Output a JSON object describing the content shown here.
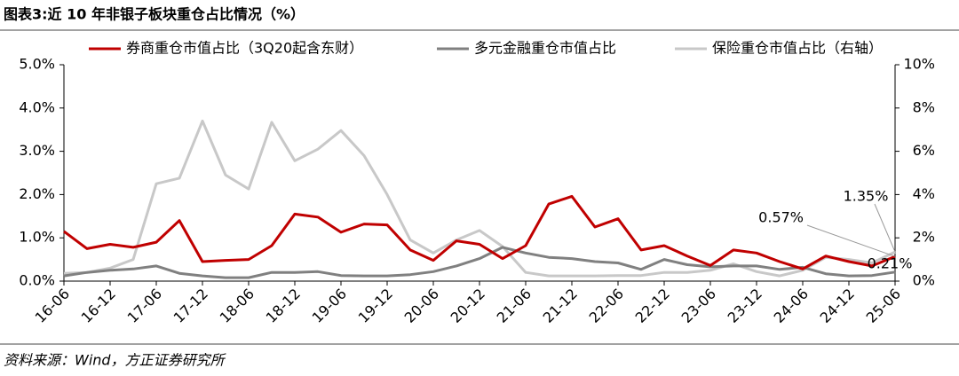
{
  "chart_data": {
    "type": "line",
    "title": "图表3:近 10 年非银子板块重仓占比情况（%）",
    "source": "资料来源：Wind，方正证券研究所",
    "categories": [
      "16-06",
      null,
      "16-12",
      null,
      "17-06",
      null,
      "17-12",
      null,
      "18-06",
      null,
      "18-12",
      null,
      "19-06",
      null,
      "19-12",
      null,
      "20-06",
      null,
      "20-12",
      null,
      "21-06",
      null,
      "21-12",
      null,
      "22-06",
      null,
      "22-12",
      null,
      "23-06",
      null,
      "23-12",
      null,
      "24-06",
      null,
      "24-12",
      null,
      "25-06"
    ],
    "series": [
      {
        "name": "券商重仓市值占比（3Q20起含东财）",
        "color": "#c00000",
        "values": [
          1.15,
          0.75,
          0.85,
          0.78,
          0.9,
          1.4,
          0.45,
          0.48,
          0.5,
          0.82,
          1.55,
          1.48,
          1.13,
          1.32,
          1.3,
          0.72,
          0.48,
          0.93,
          0.85,
          0.52,
          0.82,
          1.78,
          1.96,
          1.25,
          1.44,
          0.72,
          0.82,
          0.58,
          0.36,
          0.72,
          0.65,
          0.45,
          0.28,
          0.58,
          0.45,
          0.35,
          0.57
        ]
      },
      {
        "name": "多元金融重仓市值占比",
        "color": "#808080",
        "values": [
          0.12,
          0.2,
          0.25,
          0.28,
          0.35,
          0.18,
          0.12,
          0.08,
          0.08,
          0.2,
          0.2,
          0.22,
          0.13,
          0.12,
          0.12,
          0.15,
          0.22,
          0.35,
          0.52,
          0.78,
          0.65,
          0.55,
          0.52,
          0.45,
          0.42,
          0.27,
          0.5,
          0.38,
          0.33,
          0.35,
          0.35,
          0.27,
          0.32,
          0.17,
          0.12,
          0.13,
          0.21
        ]
      },
      {
        "name": "保险重仓市值占比（右轴）",
        "color": "#c8c8c8",
        "axis": "y2",
        "values": [
          0.36,
          0.4,
          0.6,
          1.0,
          4.5,
          4.76,
          7.4,
          4.9,
          4.26,
          7.34,
          5.56,
          6.1,
          6.96,
          5.8,
          4.0,
          1.9,
          1.3,
          1.9,
          2.34,
          1.6,
          0.4,
          0.24,
          0.24,
          0.24,
          0.26,
          0.26,
          0.4,
          0.4,
          0.5,
          0.8,
          0.44,
          0.24,
          0.5,
          1.1,
          1.0,
          0.84,
          1.35
        ]
      }
    ],
    "annotations": [
      "0.57%",
      "1.35%",
      "0.21%"
    ],
    "ylim": [
      0,
      5
    ],
    "yticks": [
      {
        "value": 0,
        "label": "0.0%"
      },
      {
        "value": 1,
        "label": "1.0%"
      },
      {
        "value": 2,
        "label": "2.0%"
      },
      {
        "value": 3,
        "label": "3.0%"
      },
      {
        "value": 4,
        "label": "4.0%"
      },
      {
        "value": 5,
        "label": "5.0%"
      }
    ],
    "y2lim": [
      0,
      10
    ],
    "y2ticks": [
      {
        "value": 0,
        "label": "0%"
      },
      {
        "value": 2,
        "label": "2%"
      },
      {
        "value": 4,
        "label": "4%"
      },
      {
        "value": 6,
        "label": "6%"
      },
      {
        "value": 8,
        "label": "8%"
      },
      {
        "value": 10,
        "label": "10%"
      }
    ],
    "grid": false,
    "legend": "top"
  }
}
